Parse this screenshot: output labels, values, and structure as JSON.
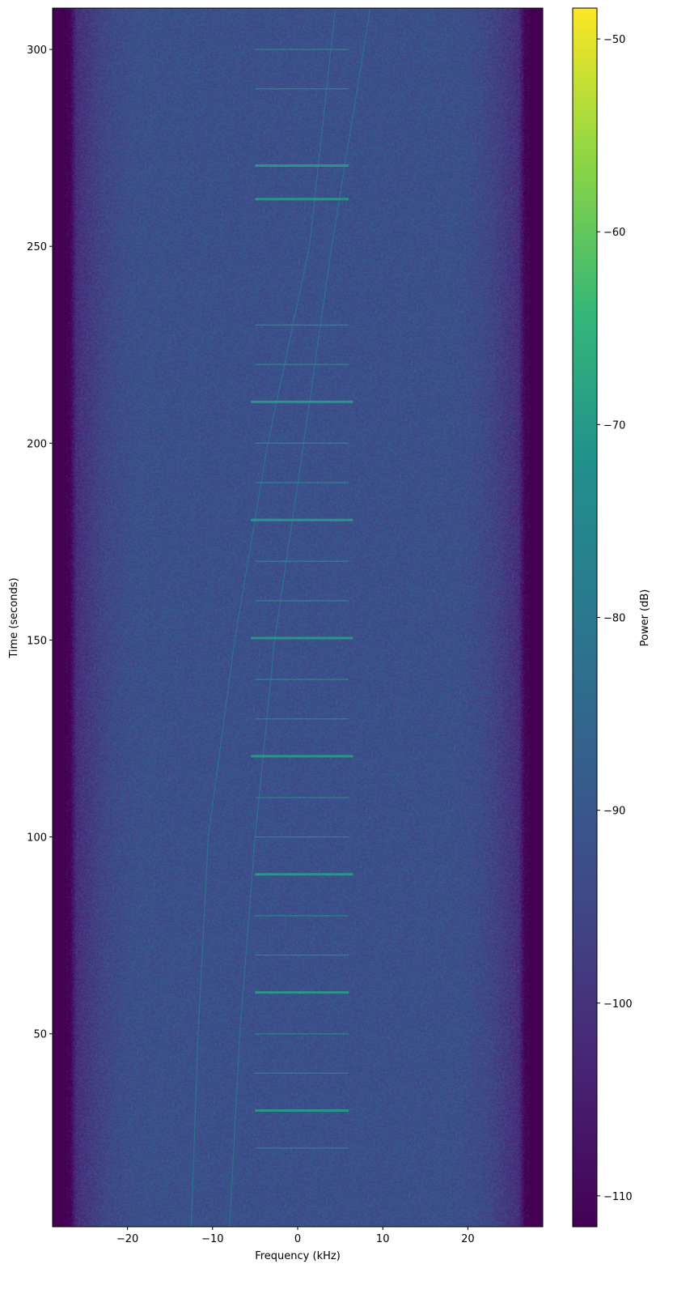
{
  "chart_data": {
    "type": "heatmap",
    "subtype": "spectrogram",
    "xlabel": "Frequency (kHz)",
    "ylabel": "Time (seconds)",
    "colorbar_label": "Power (dB)",
    "colormap": "viridis",
    "xlim": [
      -28.8,
      28.8
    ],
    "ylim": [
      1,
      310.5
    ],
    "clim": [
      -111.6,
      -48.4
    ],
    "xticks": [
      -20,
      -10,
      0,
      10,
      20
    ],
    "xtick_labels": [
      "−20",
      "−10",
      "0",
      "10",
      "20"
    ],
    "yticks": [
      50,
      100,
      150,
      200,
      250,
      300
    ],
    "ytick_labels": [
      "50",
      "100",
      "150",
      "200",
      "250",
      "300"
    ],
    "cticks": [
      -110,
      -100,
      -90,
      -80,
      -70,
      -60,
      -50
    ],
    "ctick_labels": [
      "−110",
      "−100",
      "−90",
      "−80",
      "−70",
      "−60",
      "−50"
    ],
    "noise_floor_db": -92,
    "band_edge_khz": 26,
    "drifting_carriers": [
      {
        "points": [
          [
            -12.5,
            1
          ],
          [
            -11.7,
            50
          ],
          [
            -10.5,
            100
          ],
          [
            -7.4,
            150
          ],
          [
            -3.5,
            200
          ],
          [
            1.4,
            250
          ],
          [
            4.4,
            310
          ]
        ],
        "db": -80
      },
      {
        "points": [
          [
            -8,
            1
          ],
          [
            -6.8,
            50
          ],
          [
            -5,
            100
          ],
          [
            -2.7,
            150
          ],
          [
            0.7,
            200
          ],
          [
            4,
            250
          ],
          [
            8.5,
            310
          ]
        ],
        "db": -80
      }
    ],
    "bursts": [
      {
        "t": 21,
        "f": [
          -5,
          6
        ],
        "strong": false
      },
      {
        "t": 30.5,
        "f": [
          -5,
          6
        ],
        "strong": true
      },
      {
        "t": 40,
        "f": [
          -5,
          6
        ],
        "strong": false
      },
      {
        "t": 50,
        "f": [
          -5,
          6
        ],
        "strong": false
      },
      {
        "t": 60.5,
        "f": [
          -5,
          6
        ],
        "strong": true
      },
      {
        "t": 70,
        "f": [
          -5,
          6
        ],
        "strong": false
      },
      {
        "t": 80,
        "f": [
          -5,
          6
        ],
        "strong": false
      },
      {
        "t": 90.5,
        "f": [
          -5,
          6.5
        ],
        "strong": true
      },
      {
        "t": 100,
        "f": [
          -5,
          6
        ],
        "strong": false
      },
      {
        "t": 110,
        "f": [
          -5,
          6
        ],
        "strong": false
      },
      {
        "t": 120.5,
        "f": [
          -5.5,
          6.5
        ],
        "strong": true
      },
      {
        "t": 130,
        "f": [
          -5,
          6
        ],
        "strong": false
      },
      {
        "t": 140,
        "f": [
          -5,
          6
        ],
        "strong": false
      },
      {
        "t": 150.5,
        "f": [
          -5.5,
          6.5
        ],
        "strong": true
      },
      {
        "t": 160,
        "f": [
          -5,
          6
        ],
        "strong": false
      },
      {
        "t": 170,
        "f": [
          -5,
          6
        ],
        "strong": false
      },
      {
        "t": 180.5,
        "f": [
          -5.5,
          6.5
        ],
        "strong": true
      },
      {
        "t": 190,
        "f": [
          -5,
          6
        ],
        "strong": false
      },
      {
        "t": 200,
        "f": [
          -5,
          6
        ],
        "strong": false
      },
      {
        "t": 210.5,
        "f": [
          -5.5,
          6.5
        ],
        "strong": true
      },
      {
        "t": 220,
        "f": [
          -5,
          6
        ],
        "strong": false
      },
      {
        "t": 230,
        "f": [
          -5,
          6
        ],
        "strong": false
      },
      {
        "t": 262,
        "f": [
          -5,
          6
        ],
        "strong": true
      },
      {
        "t": 270.5,
        "f": [
          -5,
          6
        ],
        "strong": true
      },
      {
        "t": 290,
        "f": [
          -5,
          6
        ],
        "strong": false
      },
      {
        "t": 300,
        "f": [
          -5,
          6
        ],
        "strong": false
      }
    ]
  }
}
